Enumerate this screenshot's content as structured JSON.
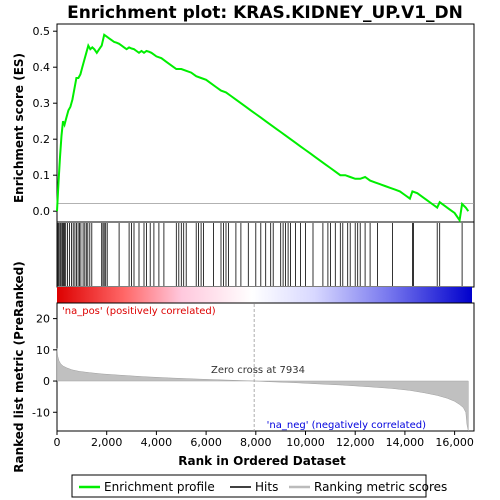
{
  "chart_data": [
    {
      "type": "line",
      "title": "Enrichment plot: KRAS.KIDNEY_UP.V1_DN",
      "ylabel": "Enrichment score (ES)",
      "ylim": [
        -0.03,
        0.52
      ],
      "yticks": [
        0.0,
        0.1,
        0.2,
        0.3,
        0.4,
        0.5
      ],
      "ytick_labels": [
        "0.0",
        "0.1",
        "0.2",
        "0.3",
        "0.4",
        "0.5"
      ],
      "xlim": [
        0,
        16700
      ],
      "color": "#00ee00",
      "series": [
        {
          "name": "Enrichment profile",
          "x": [
            0,
            60,
            120,
            180,
            240,
            300,
            380,
            460,
            540,
            620,
            700,
            780,
            860,
            940,
            1020,
            1100,
            1180,
            1260,
            1340,
            1420,
            1500,
            1600,
            1700,
            1800,
            1900,
            2000,
            2100,
            2200,
            2300,
            2400,
            2500,
            2600,
            2700,
            2800,
            2900,
            3000,
            3100,
            3200,
            3300,
            3400,
            3500,
            3600,
            3700,
            3800,
            3900,
            4000,
            4200,
            4400,
            4600,
            4800,
            5000,
            5200,
            5400,
            5600,
            5800,
            6000,
            6200,
            6400,
            6600,
            6800,
            7000,
            7200,
            7400,
            7600,
            7800,
            8000,
            8200,
            8400,
            8600,
            8800,
            9000,
            9200,
            9400,
            9600,
            9800,
            10000,
            10200,
            10400,
            10600,
            10800,
            11000,
            11200,
            11400,
            11600,
            11800,
            12000,
            12200,
            12400,
            12600,
            12800,
            13000,
            13200,
            13400,
            13600,
            13800,
            14000,
            14200,
            14300,
            14500,
            14700,
            14900,
            15100,
            15300,
            15400,
            15600,
            15800,
            16000,
            16200,
            16300,
            16450,
            16550
          ],
          "y": [
            0.0,
            0.08,
            0.15,
            0.21,
            0.25,
            0.24,
            0.26,
            0.28,
            0.29,
            0.31,
            0.34,
            0.37,
            0.37,
            0.38,
            0.4,
            0.42,
            0.44,
            0.46,
            0.45,
            0.455,
            0.45,
            0.44,
            0.45,
            0.46,
            0.49,
            0.485,
            0.48,
            0.475,
            0.47,
            0.468,
            0.465,
            0.46,
            0.455,
            0.45,
            0.455,
            0.452,
            0.45,
            0.445,
            0.44,
            0.445,
            0.44,
            0.445,
            0.443,
            0.44,
            0.435,
            0.43,
            0.425,
            0.415,
            0.405,
            0.395,
            0.395,
            0.39,
            0.385,
            0.375,
            0.37,
            0.365,
            0.355,
            0.345,
            0.335,
            0.33,
            0.32,
            0.31,
            0.3,
            0.29,
            0.28,
            0.27,
            0.26,
            0.25,
            0.24,
            0.23,
            0.22,
            0.21,
            0.2,
            0.19,
            0.18,
            0.17,
            0.16,
            0.15,
            0.14,
            0.13,
            0.12,
            0.11,
            0.1,
            0.1,
            0.095,
            0.09,
            0.09,
            0.095,
            0.085,
            0.08,
            0.075,
            0.07,
            0.065,
            0.06,
            0.055,
            0.045,
            0.035,
            0.055,
            0.05,
            0.04,
            0.03,
            0.02,
            0.01,
            0.025,
            0.015,
            0.005,
            -0.005,
            -0.025,
            0.02,
            0.01,
            0.0
          ]
        }
      ]
    },
    {
      "type": "scatter",
      "name": "Hits",
      "xlim": [
        0,
        16700
      ],
      "x": [
        40,
        80,
        130,
        170,
        220,
        260,
        300,
        350,
        420,
        500,
        580,
        650,
        720,
        780,
        850,
        900,
        960,
        1050,
        1120,
        1180,
        1240,
        1320,
        1400,
        1800,
        1850,
        1900,
        1960,
        2020,
        2500,
        2900,
        3000,
        3100,
        3300,
        3500,
        3600,
        3750,
        3900,
        4100,
        4300,
        4800,
        4900,
        5000,
        5100,
        5200,
        5600,
        5700,
        5800,
        5900,
        6300,
        6600,
        6700,
        6800,
        6900,
        7200,
        7400,
        7700,
        8000,
        8200,
        8400,
        8600,
        8700,
        9000,
        9100,
        9200,
        9300,
        9400,
        9600,
        9800,
        10000,
        10300,
        10700,
        10900,
        11000,
        11200,
        11400,
        11500,
        11700,
        11800,
        12000,
        12100,
        12200,
        12400,
        12600,
        12900,
        13500,
        14300,
        14350,
        15300,
        15400,
        16300
      ]
    },
    {
      "type": "area",
      "name": "Ranking metric scores",
      "ylabel": "Ranked list metric (PreRanked)",
      "xlabel": "Rank in Ordered Dataset",
      "ylim": [
        -16,
        25
      ],
      "yticks": [
        -10,
        0,
        10,
        20
      ],
      "ytick_labels": [
        "-10",
        "0",
        "10",
        "20"
      ],
      "xlim": [
        0,
        16700
      ],
      "xticks": [
        0,
        2000,
        4000,
        6000,
        8000,
        10000,
        12000,
        14000,
        16000
      ],
      "xtick_labels": [
        "0",
        "2,000",
        "4,000",
        "6,000",
        "8,000",
        "10,000",
        "12,000",
        "14,000",
        "16,000"
      ],
      "x": [
        0,
        30,
        80,
        150,
        250,
        400,
        600,
        900,
        1300,
        1800,
        2500,
        3500,
        4500,
        5500,
        6500,
        7500,
        7934,
        8500,
        9500,
        10500,
        11500,
        12500,
        13500,
        14200,
        14800,
        15300,
        15700,
        16000,
        16200,
        16350,
        16450,
        16500,
        16550
      ],
      "values": [
        10.5,
        8.0,
        6.5,
        5.5,
        4.8,
        4.2,
        3.6,
        3.1,
        2.7,
        2.3,
        1.9,
        1.4,
        1.0,
        0.7,
        0.4,
        0.15,
        0.0,
        -0.2,
        -0.5,
        -0.9,
        -1.3,
        -1.8,
        -2.4,
        -3.0,
        -3.8,
        -4.6,
        -5.5,
        -6.5,
        -7.5,
        -8.5,
        -10.0,
        -14.0,
        -16.0
      ],
      "zero_cross": 7934,
      "annotations": [
        "Zero cross at 7934",
        "'na_pos' (positively correlated)",
        "'na_neg' (negatively correlated)"
      ],
      "pos_color": "#dd0000",
      "neg_color": "#0000dd"
    }
  ],
  "legend": {
    "items": [
      {
        "label": "Enrichment profile",
        "color": "#00ee00"
      },
      {
        "label": "Hits",
        "color": "#000000"
      },
      {
        "label": "Ranking metric scores",
        "color": "#bbbbbb"
      }
    ]
  }
}
